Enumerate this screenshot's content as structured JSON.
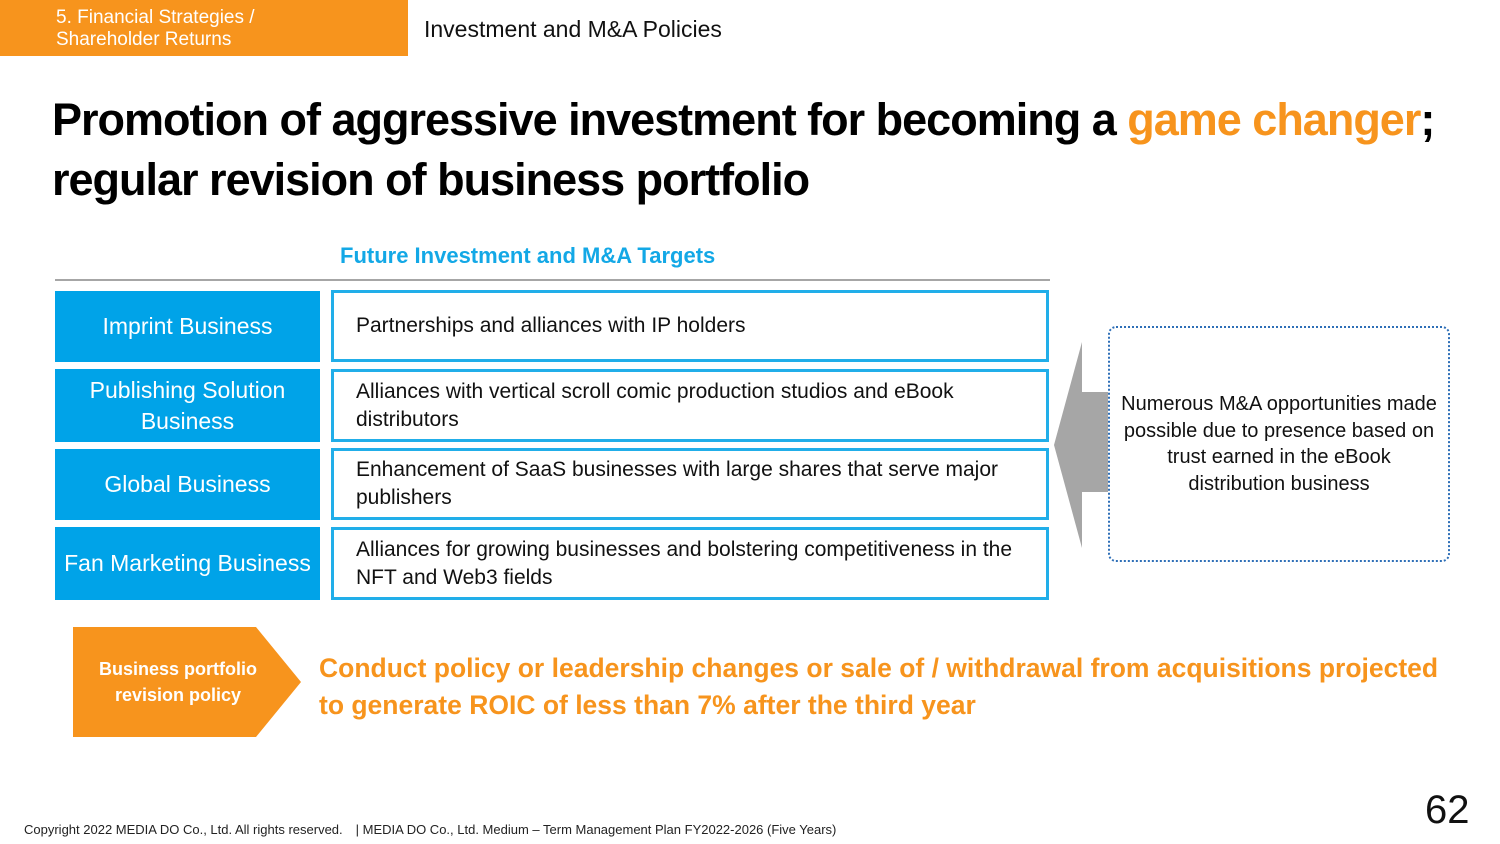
{
  "header": {
    "section_line1": "5. Financial Strategies /",
    "section_line2": "Shareholder Returns",
    "subsection": "Investment and M&A Policies"
  },
  "headline": {
    "part1": "Promotion of aggressive investment for becoming a ",
    "highlight1": "game changer",
    "part2": "; regular revision of business portfolio"
  },
  "targets": {
    "title": "Future Investment and M&A Targets",
    "rows": [
      {
        "label": "Imprint Business",
        "description": "Partnerships and alliances with IP holders"
      },
      {
        "label": "Publishing Solution Business",
        "description": "Alliances with vertical scroll comic production studios and eBook distributors"
      },
      {
        "label": "Global Business",
        "description": "Enhancement of SaaS businesses with large shares that serve major publishers"
      },
      {
        "label": "Fan Marketing Business",
        "description": "Alliances for growing businesses and bolstering competitiveness in the NFT and Web3 fields"
      }
    ]
  },
  "ma_opportunities": {
    "line1": "Numerous M&A opportunities made possible due to presence based on trust earned in the eBook",
    "line2": "distribution business"
  },
  "policy": {
    "label": "Business portfolio revision policy",
    "text": "Conduct policy or leadership changes or sale of / withdrawal from acquisitions projected to generate ROIC of less than 7% after the third year"
  },
  "footer": {
    "copyright": "Copyright 2022 MEDIA DO Co., Ltd. All rights reserved.　| MEDIA DO Co., Ltd. Medium – Term Management Plan FY2022-2026 (Five Years)",
    "page_number": "62"
  },
  "colors": {
    "accent_orange": "#f7941d",
    "accent_blue": "#00a3e8",
    "title_blue": "#13a8e6",
    "arrow_gray": "#a6a6a6"
  }
}
